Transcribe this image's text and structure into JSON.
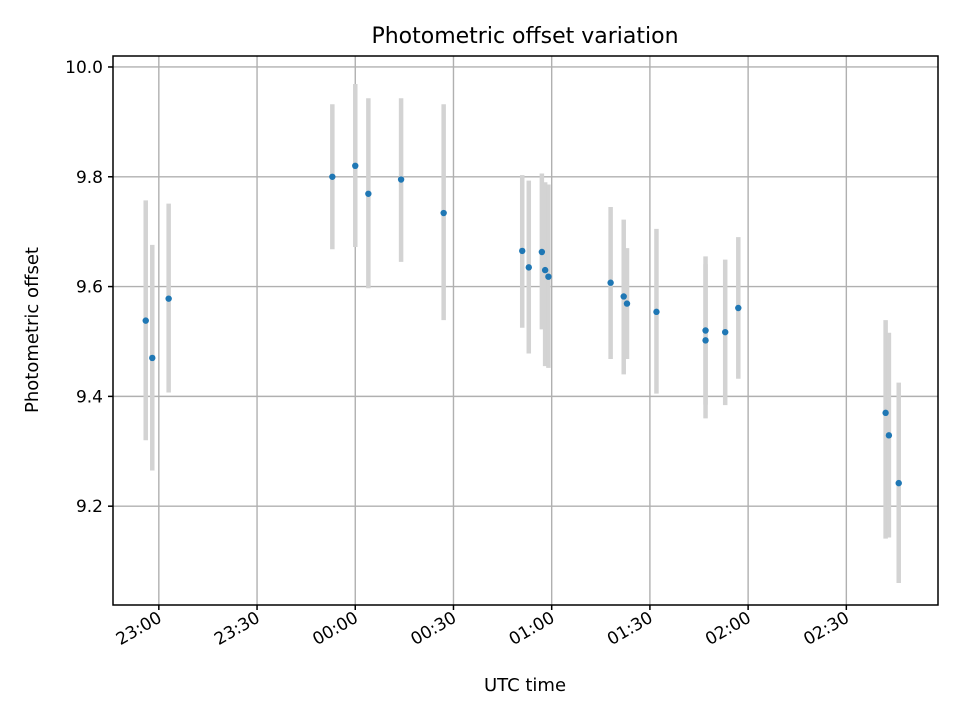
{
  "chart_data": {
    "type": "scatter",
    "title": "Photometric offset variation",
    "xlabel": "UTC time",
    "ylabel": "Photometric offset",
    "x_axis_type": "time",
    "xlim": [
      "22:46",
      "02:58"
    ],
    "ylim": [
      9.02,
      10.02
    ],
    "x_ticks": [
      "23:00",
      "23:30",
      "00:00",
      "00:30",
      "01:00",
      "01:30",
      "02:00",
      "02:30"
    ],
    "y_ticks": [
      9.2,
      9.4,
      9.6,
      9.8,
      10.0
    ],
    "y_tick_labels": [
      "9.2",
      "9.4",
      "9.6",
      "9.8",
      "10.0"
    ],
    "grid": true,
    "marker_color": "#1f77b4",
    "errorbar_color": "#d3d3d3",
    "points": [
      {
        "x": "22:56",
        "y": 9.538,
        "yerr_low": 9.32,
        "yerr_high": 9.757
      },
      {
        "x": "22:58",
        "y": 9.47,
        "yerr_low": 9.265,
        "yerr_high": 9.676
      },
      {
        "x": "23:03",
        "y": 9.578,
        "yerr_low": 9.407,
        "yerr_high": 9.751
      },
      {
        "x": "23:53",
        "y": 9.8,
        "yerr_low": 9.668,
        "yerr_high": 9.932
      },
      {
        "x": "00:00",
        "y": 9.82,
        "yerr_low": 9.672,
        "yerr_high": 9.969
      },
      {
        "x": "00:04",
        "y": 9.769,
        "yerr_low": 9.597,
        "yerr_high": 9.943
      },
      {
        "x": "00:14",
        "y": 9.795,
        "yerr_low": 9.645,
        "yerr_high": 9.943
      },
      {
        "x": "00:27",
        "y": 9.734,
        "yerr_low": 9.539,
        "yerr_high": 9.932
      },
      {
        "x": "00:51",
        "y": 9.665,
        "yerr_low": 9.525,
        "yerr_high": 9.803
      },
      {
        "x": "00:53",
        "y": 9.635,
        "yerr_low": 9.478,
        "yerr_high": 9.793
      },
      {
        "x": "00:57",
        "y": 9.663,
        "yerr_low": 9.522,
        "yerr_high": 9.806
      },
      {
        "x": "00:58",
        "y": 9.63,
        "yerr_low": 9.455,
        "yerr_high": 9.79
      },
      {
        "x": "00:59",
        "y": 9.618,
        "yerr_low": 9.452,
        "yerr_high": 9.786
      },
      {
        "x": "01:18",
        "y": 9.607,
        "yerr_low": 9.468,
        "yerr_high": 9.745
      },
      {
        "x": "01:22",
        "y": 9.582,
        "yerr_low": 9.44,
        "yerr_high": 9.722
      },
      {
        "x": "01:23",
        "y": 9.569,
        "yerr_low": 9.468,
        "yerr_high": 9.67
      },
      {
        "x": "01:32",
        "y": 9.554,
        "yerr_low": 9.405,
        "yerr_high": 9.705
      },
      {
        "x": "01:47",
        "y": 9.52,
        "yerr_low": 9.385,
        "yerr_high": 9.655
      },
      {
        "x": "01:47",
        "y": 9.502,
        "yerr_low": 9.36,
        "yerr_high": 9.641
      },
      {
        "x": "01:53",
        "y": 9.517,
        "yerr_low": 9.384,
        "yerr_high": 9.649
      },
      {
        "x": "01:57",
        "y": 9.561,
        "yerr_low": 9.432,
        "yerr_high": 9.69
      },
      {
        "x": "02:42",
        "y": 9.37,
        "yerr_low": 9.141,
        "yerr_high": 9.539
      },
      {
        "x": "02:43",
        "y": 9.329,
        "yerr_low": 9.143,
        "yerr_high": 9.516
      },
      {
        "x": "02:46",
        "y": 9.242,
        "yerr_low": 9.06,
        "yerr_high": 9.425
      }
    ]
  }
}
